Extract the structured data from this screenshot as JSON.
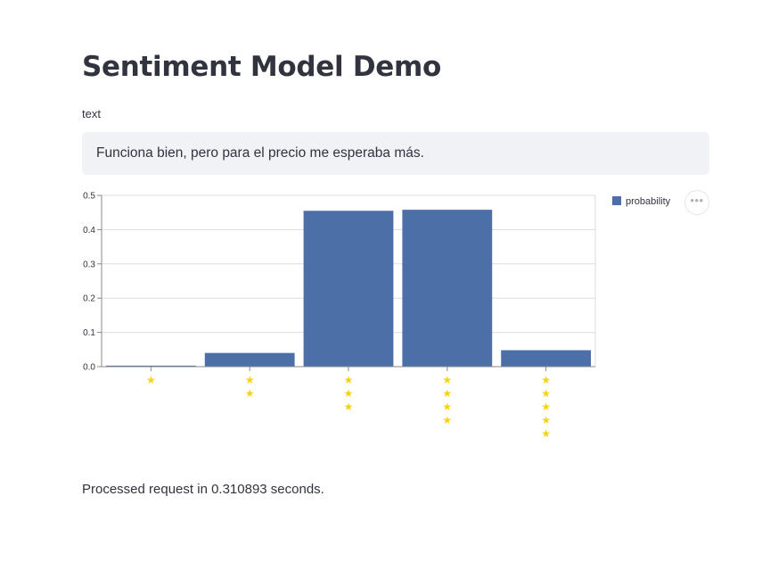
{
  "page": {
    "title": "Sentiment Model Demo"
  },
  "input": {
    "label": "text",
    "value": "Funciona bien, pero para el precio me esperaba más."
  },
  "chart_data": {
    "type": "bar",
    "categories": [
      "⭐",
      "⭐⭐",
      "⭐⭐⭐",
      "⭐⭐⭐⭐",
      "⭐⭐⭐⭐⭐"
    ],
    "stars": [
      1,
      2,
      3,
      4,
      5
    ],
    "series": [
      {
        "name": "probability",
        "values": [
          0.003,
          0.04,
          0.455,
          0.458,
          0.048
        ]
      }
    ],
    "ylim": [
      0,
      0.5
    ],
    "yticks": [
      "0.0",
      "0.1",
      "0.2",
      "0.3",
      "0.4",
      "0.5"
    ],
    "ytick_values": [
      0,
      0.1,
      0.2,
      0.3,
      0.4,
      0.5
    ],
    "grid": true,
    "legend": "top-right",
    "colors": {
      "bar": "#4c6fa8",
      "star": "#f5d40f",
      "grid": "#dddddd",
      "axis": "#888888"
    }
  },
  "toolbar": {
    "menu_icon": "more-horizontal-icon"
  },
  "status": {
    "message": "Processed request in 0.310893 seconds."
  }
}
